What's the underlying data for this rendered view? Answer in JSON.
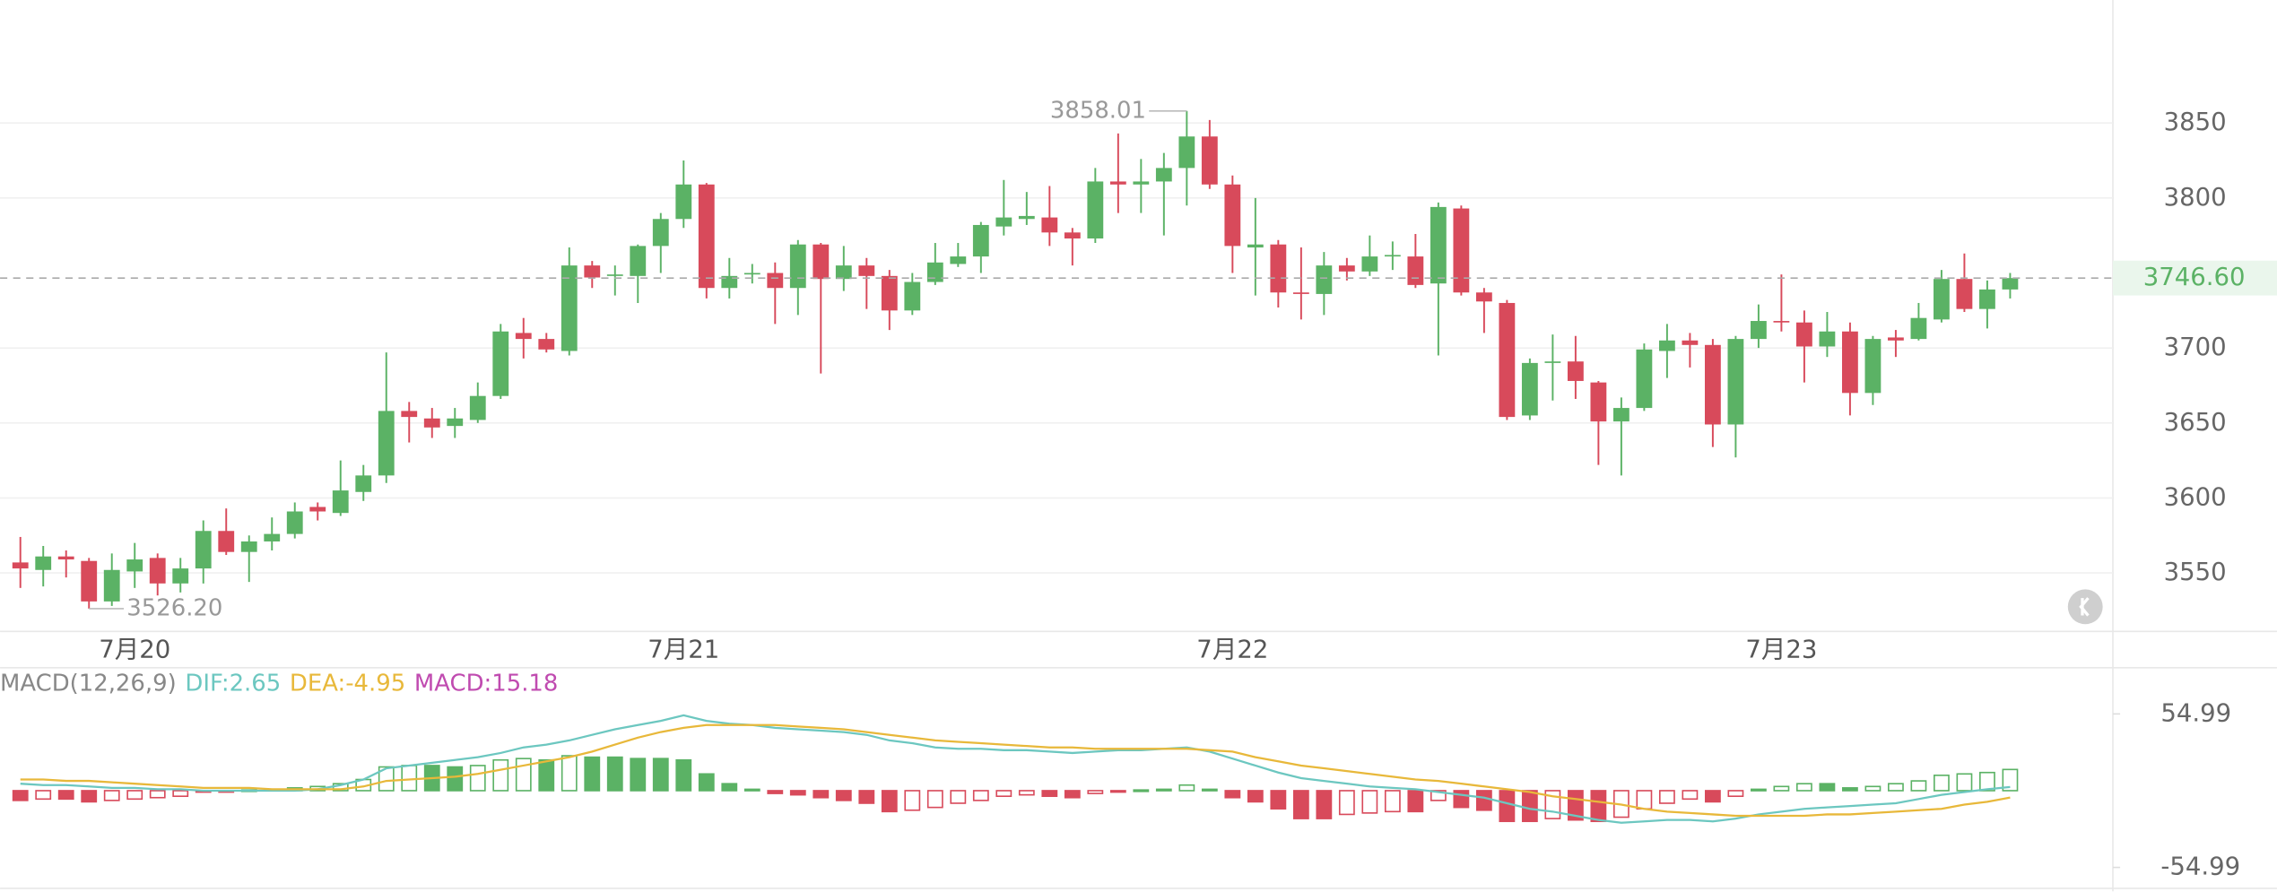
{
  "chart_data": [
    {
      "type": "candlestick",
      "categories": [
        null,
        null,
        null,
        null,
        null,
        "7月20",
        null,
        null,
        null,
        null,
        null,
        null,
        null,
        null,
        null,
        null,
        null,
        null,
        null,
        null,
        null,
        null,
        null,
        null,
        null,
        null,
        null,
        null,
        null,
        "7月21",
        null,
        null,
        null,
        null,
        null,
        null,
        null,
        null,
        null,
        null,
        null,
        null,
        null,
        null,
        null,
        null,
        null,
        null,
        null,
        null,
        null,
        null,
        null,
        "7月22",
        null,
        null,
        null,
        null,
        null,
        null,
        null,
        null,
        null,
        null,
        null,
        null,
        null,
        null,
        null,
        null,
        null,
        null,
        null,
        null,
        null,
        null,
        null,
        "7月23",
        null,
        null,
        null,
        null,
        null,
        null,
        null,
        null,
        null,
        null
      ],
      "open": [
        3557,
        3552,
        3561,
        3558,
        3531,
        3551,
        3560,
        3543,
        3553,
        3578,
        3564,
        3571,
        3576,
        3594,
        3590,
        3604,
        3615,
        3658,
        3653,
        3648,
        3652,
        3668,
        3710,
        3706,
        3698,
        3755,
        3748,
        3748,
        3768,
        3786,
        3809,
        3740,
        3749,
        3750,
        3740,
        3769,
        3746,
        3755,
        3748,
        3725,
        3744,
        3756,
        3761,
        3781,
        3786,
        3787,
        3777,
        3773,
        3811,
        3809,
        3811,
        3820,
        3841,
        3809,
        3767,
        3769,
        3737,
        3736,
        3755,
        3751,
        3761,
        3761,
        3743,
        3793,
        3737,
        3730,
        3655,
        3690,
        3691,
        3677,
        3651,
        3660,
        3698,
        3705,
        3702,
        3649,
        3706,
        3718,
        3717,
        3701,
        3711,
        3670,
        3707,
        3706,
        3719,
        3746,
        3726,
        3739
      ],
      "high": [
        3574,
        3568,
        3565,
        3560,
        3563,
        3570,
        3563,
        3560,
        3585,
        3593,
        3575,
        3587,
        3597,
        3597,
        3625,
        3622,
        3697,
        3664,
        3660,
        3660,
        3677,
        3716,
        3720,
        3710,
        3767,
        3758,
        3755,
        3769,
        3790,
        3825,
        3810,
        3760,
        3756,
        3757,
        3772,
        3770,
        3768,
        3760,
        3752,
        3750,
        3770,
        3770,
        3784,
        3812,
        3804,
        3808,
        3780,
        3820,
        3843,
        3826,
        3830,
        3858.01,
        3852,
        3815,
        3800,
        3772,
        3767,
        3764,
        3760,
        3775,
        3771,
        3776,
        3797,
        3795,
        3740,
        3732,
        3693,
        3709,
        3708,
        3678,
        3667,
        3703,
        3716,
        3710,
        3706,
        3708,
        3729,
        3749,
        3725,
        3724,
        3717,
        3708,
        3712,
        3730,
        3752,
        3763,
        3745,
        3750
      ],
      "low": [
        3540,
        3541,
        3547,
        3526.2,
        3528,
        3540,
        3535,
        3537,
        3543,
        3562,
        3544,
        3565,
        3573,
        3585,
        3588,
        3598,
        3610,
        3637,
        3640,
        3640,
        3650,
        3666,
        3693,
        3697,
        3695,
        3740,
        3735,
        3730,
        3750,
        3780,
        3733,
        3733,
        3743,
        3716,
        3722,
        3683,
        3738,
        3726,
        3712,
        3722,
        3742,
        3754,
        3750,
        3775,
        3782,
        3768,
        3755,
        3770,
        3790,
        3790,
        3775,
        3795,
        3806,
        3750,
        3735,
        3727,
        3719,
        3722,
        3745,
        3748,
        3752,
        3740,
        3695,
        3735,
        3710,
        3652,
        3652,
        3665,
        3666,
        3622,
        3615,
        3658,
        3680,
        3687,
        3634,
        3627,
        3700,
        3711,
        3677,
        3694,
        3655,
        3662,
        3694,
        3705,
        3717,
        3724,
        3713,
        3733
      ],
      "close": [
        3553,
        3561,
        3559,
        3531,
        3552,
        3559,
        3543,
        3553,
        3578,
        3564,
        3571,
        3576,
        3591,
        3591,
        3605,
        3615,
        3658,
        3654,
        3647,
        3653,
        3668,
        3711,
        3706,
        3699,
        3755,
        3747,
        3749,
        3768,
        3786,
        3809,
        3740,
        3748,
        3750,
        3740,
        3769,
        3746,
        3755,
        3748,
        3725,
        3744,
        3757,
        3761,
        3782,
        3787,
        3788,
        3777,
        3773,
        3811,
        3809,
        3811,
        3820,
        3841,
        3809,
        3768,
        3769,
        3737,
        3736,
        3755,
        3751,
        3761,
        3762,
        3742,
        3794,
        3737,
        3731,
        3654,
        3690,
        3691,
        3678,
        3651,
        3660,
        3699,
        3705,
        3702,
        3649,
        3706,
        3718,
        3717,
        3701,
        3711,
        3670,
        3706,
        3705,
        3720,
        3746,
        3726,
        3739,
        3746.6
      ],
      "up_color": "#5bb265",
      "down_color": "#d84a5b",
      "ylim": [
        3511,
        3932
      ],
      "yticks": [
        3550,
        3600,
        3650,
        3700,
        3800,
        3850
      ],
      "grid": true,
      "max_label": "3858.01",
      "min_label": "3526.20",
      "last_label": "3746.60"
    },
    {
      "type": "macd",
      "title": "MACD(12,26,9)",
      "series": [
        {
          "label": "DIF:2.65",
          "color": "#6cc7c0",
          "values": [
            5,
            4,
            4,
            3,
            2,
            2,
            1,
            1,
            0,
            0,
            0,
            0,
            0,
            1,
            4,
            8,
            16,
            18,
            20,
            22,
            24,
            27,
            31,
            33,
            36,
            40,
            44,
            47,
            50,
            54,
            50,
            48,
            47,
            45,
            44,
            43,
            42,
            40,
            36,
            34,
            31,
            30,
            30,
            29,
            29,
            28,
            27,
            28,
            29,
            29,
            30,
            31,
            28,
            23,
            18,
            13,
            9,
            7,
            5,
            3,
            2,
            1,
            -1,
            -3,
            -5,
            -9,
            -13,
            -15,
            -18,
            -21,
            -23,
            -22,
            -21,
            -21,
            -22,
            -20,
            -17,
            -15,
            -13,
            -12,
            -11,
            -10,
            -9,
            -6,
            -3,
            -1,
            1,
            2.65
          ]
        },
        {
          "label": "DEA:-4.95",
          "color": "#e8b83a",
          "values": [
            8,
            8,
            7,
            7,
            6,
            5,
            4,
            3,
            2,
            2,
            2,
            1,
            1,
            1,
            1,
            3,
            7,
            8,
            9,
            10,
            12,
            15,
            18,
            21,
            24,
            28,
            33,
            38,
            42,
            45,
            47,
            47,
            47,
            47,
            46,
            45,
            44,
            42,
            40,
            38,
            36,
            35,
            34,
            33,
            32,
            31,
            31,
            30,
            30,
            30,
            30,
            30,
            29,
            28,
            24,
            21,
            18,
            16,
            14,
            12,
            10,
            8,
            7,
            5,
            3,
            1,
            -1,
            -4,
            -6,
            -8,
            -10,
            -13,
            -15,
            -16,
            -17,
            -18,
            -18,
            -18,
            -18,
            -17,
            -17,
            -16,
            -15,
            -14,
            -13,
            -10,
            -8,
            -4.95
          ]
        },
        {
          "label": "MACD:15.18",
          "color": "#c04bb0",
          "values": [
            -7,
            -6,
            -6,
            -8,
            -7,
            -6,
            -5,
            -4,
            -1,
            -1,
            0.5,
            1,
            2,
            3,
            5,
            8,
            17,
            18,
            18,
            17,
            18,
            22,
            23,
            22,
            25,
            24,
            24,
            23,
            23,
            22,
            12,
            5,
            1,
            -2,
            -3,
            -5,
            -7,
            -9,
            -15,
            -14,
            -12,
            -9,
            -7,
            -4,
            -3,
            -4,
            -5,
            -2,
            -1,
            0.5,
            1,
            4,
            1,
            -5,
            -8,
            -13,
            -20,
            -20,
            -17,
            -16,
            -15,
            -15,
            -7,
            -12,
            -14,
            -22,
            -22,
            -20,
            -21,
            -22,
            -19,
            -13,
            -9,
            -6,
            -8,
            -4,
            1,
            3,
            5,
            5,
            2,
            3,
            5,
            7,
            11,
            12,
            13,
            15.18
          ]
        }
      ],
      "title_color": "#888",
      "up_color": "#5bb265",
      "down_color": "#d84a5b",
      "ylim": [
        -70,
        86
      ],
      "yticks": [
        54.99,
        -54.99
      ]
    }
  ]
}
